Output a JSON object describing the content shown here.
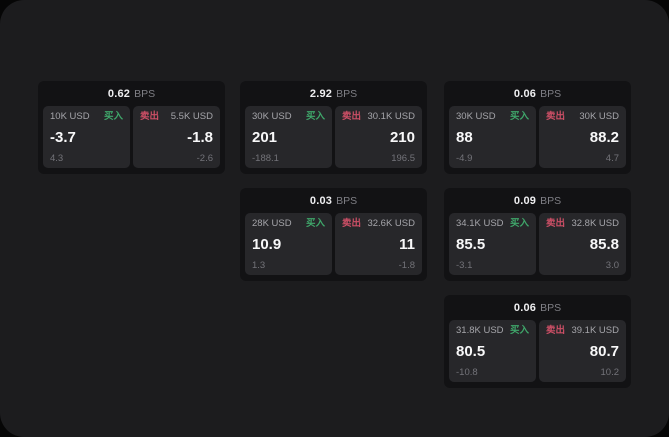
{
  "board": {
    "colors": {
      "backdrop": "#060606",
      "panel": "#1c1c1e",
      "card": "#121214",
      "tile": "#27272a",
      "buy_accent": "#3fa66a",
      "sell_accent": "#cc4f66"
    },
    "cards": [
      {
        "bps_value": "0.62",
        "bps_unit": "BPS",
        "buy": {
          "notional": "10K USD",
          "label": "买入",
          "price": "-3.7",
          "delta": "4.3"
        },
        "sell": {
          "label": "卖出",
          "notional": "5.5K USD",
          "price": "-1.8",
          "delta": "-2.6"
        }
      },
      {
        "bps_value": "2.92",
        "bps_unit": "BPS",
        "buy": {
          "notional": "30K USD",
          "label": "买入",
          "price": "201",
          "delta": "-188.1"
        },
        "sell": {
          "label": "卖出",
          "notional": "30.1K USD",
          "price": "210",
          "delta": "196.5"
        }
      },
      {
        "bps_value": "0.06",
        "bps_unit": "BPS",
        "buy": {
          "notional": "30K USD",
          "label": "买入",
          "price": "88",
          "delta": "-4.9"
        },
        "sell": {
          "label": "卖出",
          "notional": "30K USD",
          "price": "88.2",
          "delta": "4.7"
        }
      },
      {
        "bps_value": "0.03",
        "bps_unit": "BPS",
        "buy": {
          "notional": "28K USD",
          "label": "买入",
          "price": "10.9",
          "delta": "1.3"
        },
        "sell": {
          "label": "卖出",
          "notional": "32.6K USD",
          "price": "11",
          "delta": "-1.8"
        }
      },
      {
        "bps_value": "0.09",
        "bps_unit": "BPS",
        "buy": {
          "notional": "34.1K USD",
          "label": "买入",
          "price": "85.5",
          "delta": "-3.1"
        },
        "sell": {
          "label": "卖出",
          "notional": "32.8K USD",
          "price": "85.8",
          "delta": "3.0"
        }
      },
      {
        "bps_value": "0.06",
        "bps_unit": "BPS",
        "buy": {
          "notional": "31.8K USD",
          "label": "买入",
          "price": "80.5",
          "delta": "-10.8"
        },
        "sell": {
          "label": "卖出",
          "notional": "39.1K USD",
          "price": "80.7",
          "delta": "10.2"
        }
      }
    ]
  }
}
